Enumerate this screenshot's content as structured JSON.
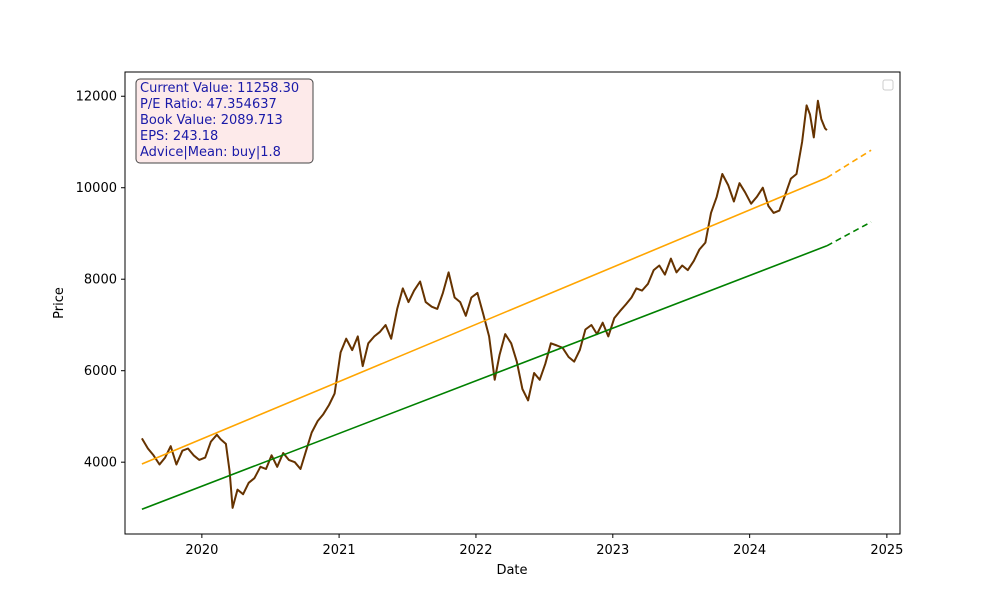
{
  "chart_data": {
    "type": "line",
    "title": "",
    "xlabel": "Date",
    "ylabel": "Price",
    "xlim": [
      "2019-06-10",
      "2025-02-05"
    ],
    "ylim": [
      2430,
      12530
    ],
    "grid": false,
    "x_ticks": [
      "2020",
      "2021",
      "2022",
      "2023",
      "2024",
      "2025"
    ],
    "y_ticks": [
      4000,
      6000,
      8000,
      10000,
      12000
    ],
    "legend": {
      "placement": "top-right",
      "entries": []
    },
    "info_box": {
      "lines": [
        "Current Value: 11258.30",
        "P/E Ratio: 47.354637",
        "Book Value: 2089.713",
        "EPS: 243.18",
        "Advice|Mean: buy|1.8"
      ]
    },
    "colors": {
      "price": "#663300",
      "upper_trend": "#ffa500",
      "lower_trend": "#008000",
      "info_face": "#fdeaea",
      "info_edge": "#444444",
      "info_text": "#1a1aa8"
    },
    "series": [
      {
        "role": "price",
        "style": "solid",
        "x": [
          "2019-07-25",
          "2019-08-10",
          "2019-08-25",
          "2019-09-10",
          "2019-09-25",
          "2019-10-10",
          "2019-10-25",
          "2019-11-10",
          "2019-11-25",
          "2019-12-10",
          "2019-12-25",
          "2020-01-10",
          "2020-01-25",
          "2020-02-10",
          "2020-02-20",
          "2020-03-05",
          "2020-03-15",
          "2020-03-23",
          "2020-04-05",
          "2020-04-20",
          "2020-05-05",
          "2020-05-20",
          "2020-06-05",
          "2020-06-20",
          "2020-07-05",
          "2020-07-20",
          "2020-08-05",
          "2020-08-20",
          "2020-09-05",
          "2020-09-20",
          "2020-10-05",
          "2020-10-20",
          "2020-11-05",
          "2020-11-20",
          "2020-12-05",
          "2020-12-20",
          "2021-01-05",
          "2021-01-20",
          "2021-02-05",
          "2021-02-20",
          "2021-03-05",
          "2021-03-20",
          "2021-04-05",
          "2021-04-20",
          "2021-05-05",
          "2021-05-20",
          "2021-06-05",
          "2021-06-20",
          "2021-07-05",
          "2021-07-20",
          "2021-08-05",
          "2021-08-20",
          "2021-09-05",
          "2021-09-20",
          "2021-10-05",
          "2021-10-20",
          "2021-11-05",
          "2021-11-20",
          "2021-12-05",
          "2021-12-20",
          "2022-01-05",
          "2022-01-20",
          "2022-02-05",
          "2022-02-20",
          "2022-03-05",
          "2022-03-20",
          "2022-04-05",
          "2022-04-20",
          "2022-05-05",
          "2022-05-20",
          "2022-06-05",
          "2022-06-20",
          "2022-07-05",
          "2022-07-20",
          "2022-08-05",
          "2022-08-20",
          "2022-09-05",
          "2022-09-20",
          "2022-10-05",
          "2022-10-20",
          "2022-11-05",
          "2022-11-20",
          "2022-12-05",
          "2022-12-20",
          "2023-01-05",
          "2023-01-20",
          "2023-02-05",
          "2023-02-20",
          "2023-03-05",
          "2023-03-20",
          "2023-04-05",
          "2023-04-20",
          "2023-05-05",
          "2023-05-20",
          "2023-06-05",
          "2023-06-20",
          "2023-07-05",
          "2023-07-20",
          "2023-08-05",
          "2023-08-20",
          "2023-09-05",
          "2023-09-20",
          "2023-10-05",
          "2023-10-20",
          "2023-11-05",
          "2023-11-20",
          "2023-12-05",
          "2023-12-20",
          "2024-01-05",
          "2024-01-20",
          "2024-02-05",
          "2024-02-20",
          "2024-03-05",
          "2024-03-20",
          "2024-04-05",
          "2024-04-20",
          "2024-05-05",
          "2024-05-20",
          "2024-06-01",
          "2024-06-10",
          "2024-06-20",
          "2024-07-01",
          "2024-07-10",
          "2024-07-20",
          "2024-07-25"
        ],
        "y": [
          4520,
          4300,
          4150,
          3950,
          4100,
          4350,
          3950,
          4250,
          4300,
          4150,
          4050,
          4100,
          4450,
          4600,
          4500,
          4400,
          3800,
          3000,
          3400,
          3300,
          3550,
          3650,
          3900,
          3850,
          4150,
          3900,
          4200,
          4050,
          4000,
          3850,
          4250,
          4650,
          4900,
          5050,
          5250,
          5500,
          6400,
          6700,
          6450,
          6750,
          6100,
          6600,
          6750,
          6850,
          7000,
          6700,
          7350,
          7800,
          7500,
          7750,
          7950,
          7500,
          7400,
          7350,
          7700,
          8150,
          7600,
          7500,
          7200,
          7600,
          7700,
          7250,
          6750,
          5800,
          6350,
          6800,
          6600,
          6200,
          5600,
          5350,
          5950,
          5800,
          6150,
          6600,
          6550,
          6500,
          6300,
          6200,
          6450,
          6900,
          7000,
          6800,
          7050,
          6750,
          7150,
          7300,
          7450,
          7600,
          7800,
          7750,
          7900,
          8200,
          8300,
          8100,
          8450,
          8150,
          8300,
          8200,
          8400,
          8650,
          8800,
          9450,
          9800,
          10300,
          10050,
          9700,
          10100,
          9900,
          9650,
          9800,
          10000,
          9600,
          9450,
          9500,
          9850,
          10200,
          10300,
          11000,
          11800,
          11600,
          11100,
          11900,
          11500,
          11300,
          11258
        ]
      },
      {
        "role": "upper_trend",
        "style": "solid",
        "x": [
          "2019-07-25",
          "2024-07-25"
        ],
        "y": [
          3960,
          10220
        ]
      },
      {
        "role": "upper_trend",
        "style": "dashed",
        "x": [
          "2024-07-25",
          "2024-11-20"
        ],
        "y": [
          10220,
          10820
        ]
      },
      {
        "role": "lower_trend",
        "style": "solid",
        "x": [
          "2019-07-25",
          "2024-07-25"
        ],
        "y": [
          2970,
          8730
        ]
      },
      {
        "role": "lower_trend",
        "style": "dashed",
        "x": [
          "2024-07-25",
          "2024-11-20"
        ],
        "y": [
          8730,
          9250
        ]
      }
    ]
  }
}
